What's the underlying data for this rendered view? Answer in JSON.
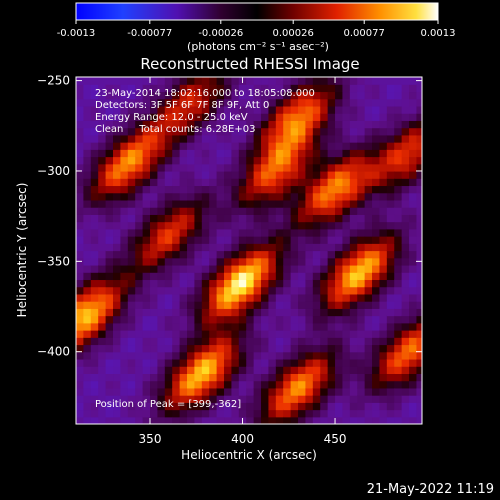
{
  "colorbar": {
    "ticks": [
      "-0.0013",
      "-0.00077",
      "-0.00026",
      "0.00026",
      "0.00077",
      "0.0013"
    ],
    "unit_label": "(photons cm⁻² s⁻¹ asec⁻²)",
    "range": [
      -0.0013,
      0.0013
    ]
  },
  "chart_data": {
    "type": "heatmap",
    "title": "Reconstructed RHESSI Image",
    "xlabel": "Heliocentric X (arcsec)",
    "ylabel": "Heliocentric Y (arcsec)",
    "xlim": [
      310,
      497
    ],
    "ylim": [
      -440,
      -248
    ],
    "xticks": [
      350,
      400,
      450
    ],
    "yticks": [
      -250,
      -300,
      -350,
      -400
    ],
    "peak": {
      "x": 399,
      "y": -362
    },
    "sources": [
      {
        "x": 399,
        "y": -362,
        "value": 0.0013
      },
      {
        "x": 378,
        "y": -412,
        "value": 0.0011
      },
      {
        "x": 315,
        "y": -380,
        "value": 0.0011
      },
      {
        "x": 338,
        "y": -296,
        "value": 0.0009
      },
      {
        "x": 463,
        "y": -356,
        "value": 0.0011
      },
      {
        "x": 450,
        "y": -310,
        "value": 0.0009
      },
      {
        "x": 430,
        "y": -270,
        "value": 0.0008
      },
      {
        "x": 418,
        "y": -300,
        "value": 0.0007
      },
      {
        "x": 430,
        "y": -420,
        "value": 0.0009
      },
      {
        "x": 372,
        "y": -262,
        "value": 0.0005
      },
      {
        "x": 490,
        "y": -400,
        "value": 0.0008
      },
      {
        "x": 360,
        "y": -335,
        "value": 0.0006
      },
      {
        "x": 490,
        "y": -290,
        "value": 0.0006
      }
    ],
    "annotations": [
      "23-May-2014 18:02:16.000 to 18:05:08.000",
      "Detectors: 3F 5F 6F 7F 8F 9F, Att 0",
      "Energy Range: 12.0 - 25.0 keV",
      "Clean     Total counts: 6.28E+03"
    ],
    "peak_label": "Position of Peak = [399,-362]"
  },
  "timestamp": "21-May-2022 11:19"
}
